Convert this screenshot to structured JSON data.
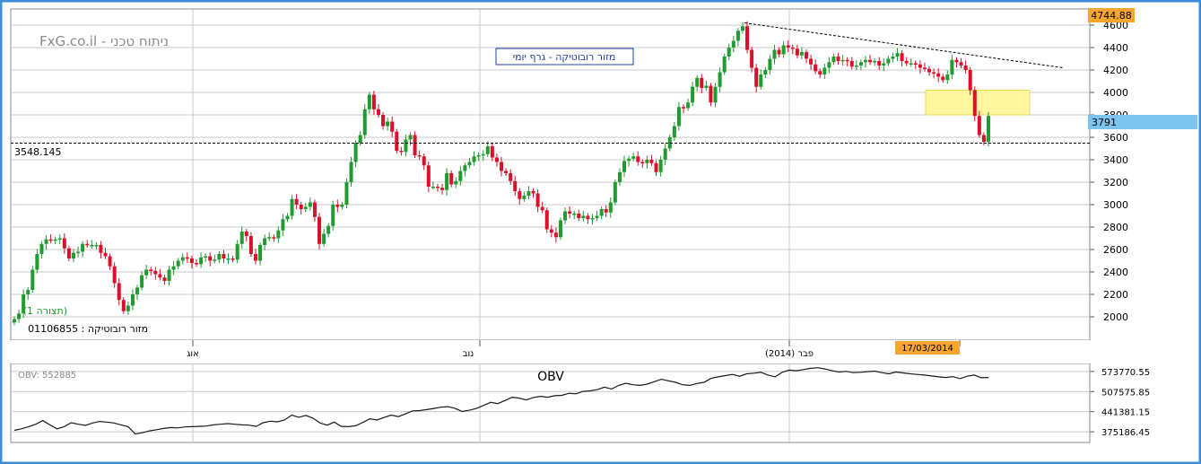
{
  "branding": {
    "site_text": "FxG.co.il - ניתוח טכני",
    "chart_title": "מזור רובוטיקה - גרף יומי",
    "stock_line": "מזור רובוטיקה : 01106855",
    "view_label": "(תצורה 1)"
  },
  "colors": {
    "frame": "#3c8fd8",
    "up": "#1f9b2f",
    "down": "#d8102a",
    "grid": "#c8c8c8",
    "price_tag": "#f7a530",
    "last_tag": "#7cc4f0",
    "zone": "#fff7a0",
    "date_tag": "#f7a530"
  },
  "price_axis": {
    "ticks": [
      "4600",
      "4400",
      "4200",
      "4000",
      "3800",
      "3600",
      "3400",
      "3200",
      "3000",
      "2800",
      "2600",
      "2400",
      "2200",
      "2000"
    ],
    "max_label": "4744.88",
    "last_label": "3791",
    "support_label": "3548.145"
  },
  "time_axis": {
    "labels": [
      "אוג",
      "נוב",
      "פבר (2014)"
    ],
    "cursor_date": "17/03/2014"
  },
  "obv": {
    "title": "OBV",
    "current": "OBV: 552885",
    "ticks": [
      "573770.55",
      "507575.85",
      "441381.15",
      "375186.45"
    ]
  },
  "chart_data": {
    "type": "candlestick",
    "title": "מזור רובוטיקה - גרף יומי",
    "ylim": [
      1800,
      4800
    ],
    "price_close": [
      1980,
      2030,
      2200,
      2240,
      2420,
      2560,
      2650,
      2690,
      2680,
      2690,
      2700,
      2610,
      2520,
      2570,
      2580,
      2650,
      2640,
      2640,
      2640,
      2570,
      2540,
      2450,
      2300,
      2150,
      2050,
      2100,
      2200,
      2260,
      2370,
      2420,
      2410,
      2380,
      2350,
      2320,
      2420,
      2450,
      2500,
      2530,
      2520,
      2480,
      2470,
      2530,
      2540,
      2500,
      2510,
      2560,
      2520,
      2520,
      2510,
      2650,
      2760,
      2720,
      2560,
      2500,
      2640,
      2700,
      2710,
      2700,
      2770,
      2870,
      2900,
      3050,
      3000,
      2960,
      2980,
      3020,
      2890,
      2650,
      2740,
      2810,
      3000,
      2980,
      3000,
      3200,
      3380,
      3550,
      3620,
      3850,
      3980,
      3850,
      3800,
      3700,
      3740,
      3650,
      3480,
      3470,
      3580,
      3620,
      3440,
      3430,
      3350,
      3160,
      3160,
      3150,
      3130,
      3280,
      3180,
      3210,
      3300,
      3350,
      3380,
      3430,
      3440,
      3450,
      3520,
      3420,
      3380,
      3300,
      3280,
      3210,
      3120,
      3050,
      3080,
      3120,
      3100,
      2980,
      2950,
      2780,
      2750,
      2710,
      2860,
      2940,
      2920,
      2920,
      2880,
      2900,
      2870,
      2880,
      2900,
      2960,
      2930,
      3020,
      3200,
      3290,
      3390,
      3410,
      3430,
      3380,
      3370,
      3400,
      3370,
      3290,
      3400,
      3500,
      3600,
      3700,
      3870,
      3860,
      3910,
      4050,
      4130,
      4040,
      4060,
      3910,
      4050,
      4180,
      4320,
      4400,
      4460,
      4550,
      4590,
      4380,
      4220,
      4050,
      4160,
      4200,
      4300,
      4380,
      4340,
      4420,
      4400,
      4390,
      4330,
      4360,
      4300,
      4250,
      4190,
      4160,
      4220,
      4270,
      4320,
      4280,
      4290,
      4280,
      4230,
      4240,
      4270,
      4290,
      4270,
      4280,
      4240,
      4260,
      4300,
      4320,
      4350,
      4280,
      4260,
      4260,
      4250,
      4220,
      4210,
      4180,
      4170,
      4140,
      4110,
      4160,
      4290,
      4270,
      4240,
      4200,
      4020,
      3790,
      3620,
      3560,
      3791
    ],
    "obv_ylim": [
      340000,
      600000
    ],
    "obv_values": [
      380000,
      385000,
      392000,
      400000,
      412000,
      398000,
      385000,
      392000,
      405000,
      400000,
      396000,
      404000,
      409000,
      407000,
      404000,
      398000,
      392000,
      368000,
      372000,
      378000,
      382000,
      386000,
      389000,
      388000,
      391000,
      392000,
      393000,
      394000,
      398000,
      400000,
      402000,
      400000,
      398000,
      397000,
      393000,
      405000,
      410000,
      408000,
      414000,
      430000,
      423000,
      429000,
      420000,
      404000,
      397000,
      407000,
      393000,
      392000,
      395000,
      406000,
      418000,
      414000,
      422000,
      430000,
      425000,
      434000,
      444000,
      445000,
      448000,
      452000,
      456000,
      458000,
      452000,
      442000,
      446000,
      452000,
      462000,
      472000,
      468000,
      478000,
      489000,
      486000,
      480000,
      488000,
      492000,
      489000,
      494000,
      495000,
      502000,
      500000,
      508000,
      510000,
      514000,
      522000,
      516000,
      528000,
      535000,
      530000,
      528000,
      532000,
      540000,
      548000,
      543000,
      538000,
      530000,
      528000,
      534000,
      538000,
      551000,
      556000,
      560000,
      564000,
      558000,
      566000,
      568000,
      571000,
      562000,
      556000,
      571000,
      578000,
      576000,
      580000,
      584000,
      586000,
      582000,
      576000,
      572000,
      574000,
      570000,
      571000,
      573000,
      575000,
      570000,
      566000,
      572000,
      569000,
      566000,
      564000,
      562000,
      559000,
      556000,
      554000,
      557000,
      550000,
      558000,
      562000,
      553000,
      554000
    ],
    "trendline_label": "",
    "support": 3548.145,
    "last": 3791,
    "max": 4744.88
  }
}
